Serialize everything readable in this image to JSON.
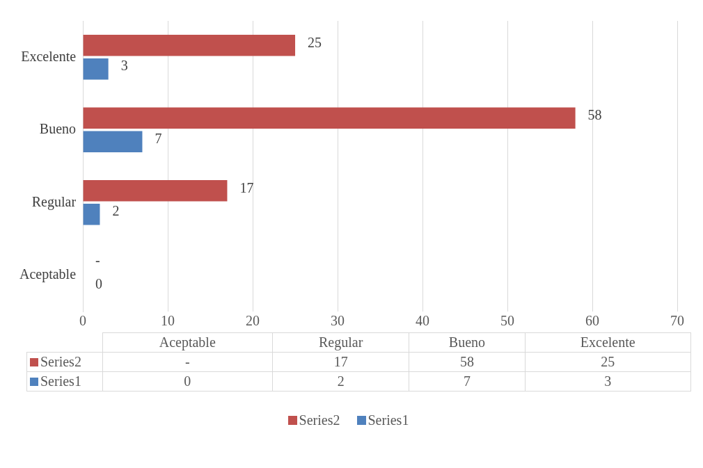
{
  "chart_data": {
    "type": "bar",
    "orientation": "horizontal",
    "categories": [
      "Excelente",
      "Bueno",
      "Regular",
      "Aceptable"
    ],
    "series": [
      {
        "name": "Series2",
        "color": "#c0504d",
        "values": [
          25,
          58,
          17,
          null
        ],
        "value_labels": [
          "25",
          "58",
          "17",
          "-"
        ]
      },
      {
        "name": "Series1",
        "color": "#4f81bd",
        "values": [
          3,
          7,
          2,
          0
        ],
        "value_labels": [
          "3",
          "7",
          "2",
          "0"
        ]
      }
    ],
    "xlim": [
      0,
      70
    ],
    "xticks": [
      0,
      10,
      20,
      30,
      40,
      50,
      60,
      70
    ],
    "grid": "x",
    "legend": "bottom"
  }
}
